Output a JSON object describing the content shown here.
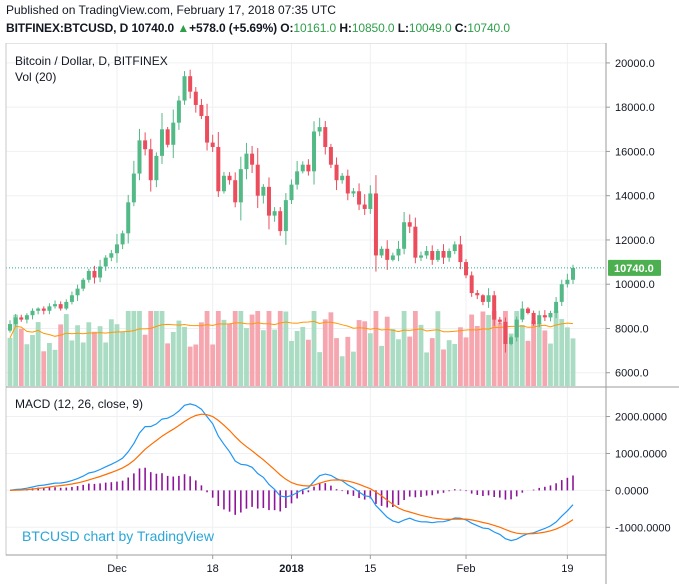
{
  "header": {
    "published": "Published on TradingView.com, February 17, 2018 07:35 UTC",
    "symbol": "BITFINEX:BTCUSD, D",
    "last": "10740.0",
    "change": "+578.0 (+5.69%)",
    "o_label": "O:",
    "o_value": "10161.0",
    "h_label": "H:",
    "h_value": "10850.0",
    "l_label": "L:",
    "l_value": "10049.0",
    "c_label": "C:",
    "c_value": "10740.0"
  },
  "colors": {
    "up": "#26a69a",
    "candle_up": "#53b987",
    "candle_down": "#eb4d5c",
    "vol_up": "#a9dcc3",
    "vol_down": "#f5a6ae",
    "ma": "#ff9800",
    "macd": "#2196f3",
    "signal": "#ff6d00",
    "hist": "#8e1599",
    "badge": "#4caf50"
  },
  "chart_data": [
    {
      "type": "candlestick",
      "title": "Bitcoin / Dollar, D, BITFINEX",
      "volume_label": "Vol (20)",
      "price_ticks": [
        "6000.0",
        "8000.0",
        "10000.0",
        "12000.0",
        "14000.0",
        "16000.0",
        "18000.0",
        "20000.0"
      ],
      "ylim": [
        5400,
        20900
      ],
      "last_price_label": "10740.0",
      "last_price": 10740,
      "x_ticks": [
        {
          "label": "Dec",
          "bar": 19
        },
        {
          "label": "18",
          "bar": 36
        },
        {
          "label": "2018",
          "bar": 50
        },
        {
          "label": "15",
          "bar": 64
        },
        {
          "label": "Feb",
          "bar": 81
        },
        {
          "label": "19",
          "bar": 99
        }
      ],
      "close": [
        8200,
        8500,
        8400,
        8600,
        8800,
        8900,
        8800,
        9000,
        9100,
        8900,
        9200,
        9500,
        9800,
        10200,
        10600,
        10300,
        10800,
        11200,
        11400,
        11800,
        12300,
        13700,
        15000,
        16500,
        16100,
        14700,
        15800,
        17000,
        16300,
        17300,
        18300,
        19400,
        18700,
        18100,
        17600,
        16400,
        16200,
        14200,
        14900,
        14700,
        13700,
        15200,
        15900,
        15400,
        14000,
        14400,
        13100,
        13300,
        12400,
        13800,
        14500,
        15100,
        15400,
        15100,
        16900,
        17100,
        16200,
        15400,
        14700,
        14900,
        14100,
        14200,
        13600,
        13400,
        14100,
        11300,
        11600,
        11100,
        11300,
        11600,
        12800,
        12600,
        11200,
        11300,
        11500,
        11100,
        11500,
        11200,
        11500,
        11800,
        11000,
        10400,
        9600,
        9500,
        9200,
        9500,
        8400,
        8300,
        7300,
        7600,
        8400,
        8900,
        8700,
        8200,
        8600,
        8500,
        8700,
        9200,
        10000,
        10200,
        10740
      ],
      "macd_label": "MACD (12, 26, close, 9)",
      "macd_ticks": [
        "2000.0000",
        "1000.0000",
        "0.0000",
        "-1000.0000"
      ],
      "macd_ylim": [
        -1750,
        2800
      ]
    }
  ],
  "watermark": "BTCUSD chart by TradingView"
}
